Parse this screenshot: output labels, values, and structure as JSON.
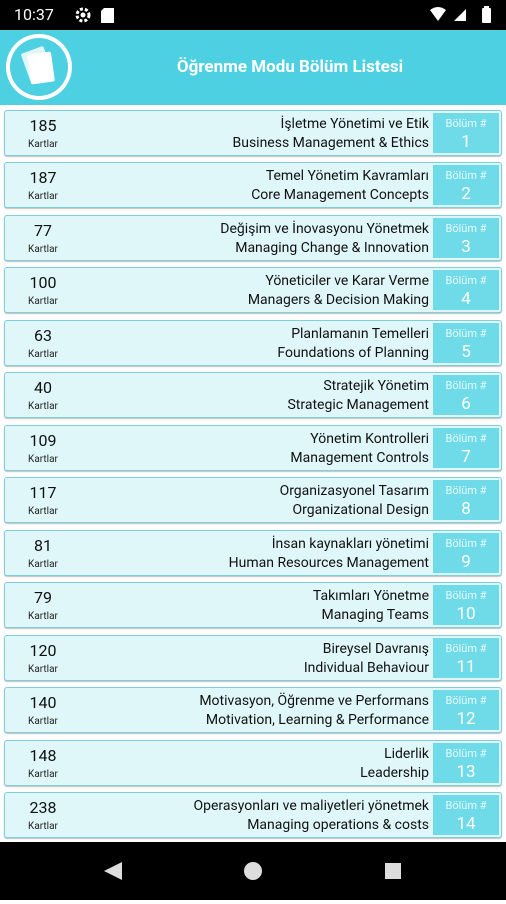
{
  "status_bar": {
    "time": "10:37"
  },
  "header": {
    "title": "Öğrenme Modu Bölüm Listesi"
  },
  "chapters": [
    {
      "count": 185,
      "unit": "Kartlar",
      "title_tr": "İşletme Yönetimi ve Etik",
      "title_en": "Business Management & Ethics",
      "section_label": "Bölüm #",
      "section": 1
    },
    {
      "count": 187,
      "unit": "Kartlar",
      "title_tr": "Temel Yönetim Kavramları",
      "title_en": "Core Management Concepts",
      "section_label": "Bölüm #",
      "section": 2
    },
    {
      "count": 77,
      "unit": "Kartlar",
      "title_tr": "Değişim ve İnovasyonu Yönetmek",
      "title_en": "Managing Change & Innovation",
      "section_label": "Bölüm #",
      "section": 3
    },
    {
      "count": 100,
      "unit": "Kartlar",
      "title_tr": "Yöneticiler ve Karar Verme",
      "title_en": "Managers & Decision Making",
      "section_label": "Bölüm #",
      "section": 4
    },
    {
      "count": 63,
      "unit": "Kartlar",
      "title_tr": "Planlamanın Temelleri",
      "title_en": "Foundations of Planning",
      "section_label": "Bölüm #",
      "section": 5
    },
    {
      "count": 40,
      "unit": "Kartlar",
      "title_tr": "Stratejik Yönetim",
      "title_en": "Strategic Management",
      "section_label": "Bölüm #",
      "section": 6
    },
    {
      "count": 109,
      "unit": "Kartlar",
      "title_tr": "Yönetim Kontrolleri",
      "title_en": "Management Controls",
      "section_label": "Bölüm #",
      "section": 7
    },
    {
      "count": 117,
      "unit": "Kartlar",
      "title_tr": "Organizasyonel Tasarım",
      "title_en": "Organizational Design",
      "section_label": "Bölüm #",
      "section": 8
    },
    {
      "count": 81,
      "unit": "Kartlar",
      "title_tr": "İnsan kaynakları yönetimi",
      "title_en": "Human Resources Management",
      "section_label": "Bölüm #",
      "section": 9
    },
    {
      "count": 79,
      "unit": "Kartlar",
      "title_tr": "Takımları Yönetme",
      "title_en": "Managing Teams",
      "section_label": "Bölüm #",
      "section": 10
    },
    {
      "count": 120,
      "unit": "Kartlar",
      "title_tr": "Bireysel Davranış",
      "title_en": "Individual Behaviour",
      "section_label": "Bölüm #",
      "section": 11
    },
    {
      "count": 140,
      "unit": "Kartlar",
      "title_tr": "Motivasyon, Öğrenme ve Performans",
      "title_en": "Motivation, Learning & Performance",
      "section_label": "Bölüm #",
      "section": 12
    },
    {
      "count": 148,
      "unit": "Kartlar",
      "title_tr": "Liderlik",
      "title_en": "Leadership",
      "section_label": "Bölüm #",
      "section": 13
    },
    {
      "count": 238,
      "unit": "Kartlar",
      "title_tr": "Operasyonları ve maliyetleri yönetmek",
      "title_en": "Managing operations & costs",
      "section_label": "Bölüm #",
      "section": 14
    }
  ]
}
